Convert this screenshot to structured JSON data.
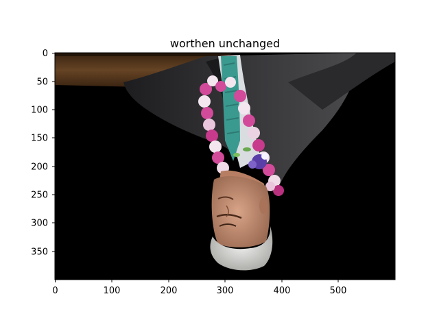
{
  "figure": {
    "title": "worthen unchanged",
    "image_extent": {
      "width": 600,
      "height": 400
    },
    "x_ticks": [
      "0",
      "100",
      "200",
      "300",
      "400",
      "500"
    ],
    "y_ticks": [
      "0",
      "50",
      "100",
      "150",
      "200",
      "250",
      "300",
      "350"
    ]
  },
  "colors": {
    "background": "#ffffff",
    "axes_frame": "#000000",
    "photo_background": "#000000",
    "suit": "#2f2f31",
    "shirt": "#d9dde0",
    "tie": "#3a9a90",
    "lei_pink": "#d24a9a",
    "lei_white": "#f3e6ef",
    "lei_purple": "#5a3fa8",
    "podium": "#5b3a1e",
    "skin": "#c89478",
    "hair": "#d8d8d6"
  },
  "icons": [
    "photo-image"
  ]
}
